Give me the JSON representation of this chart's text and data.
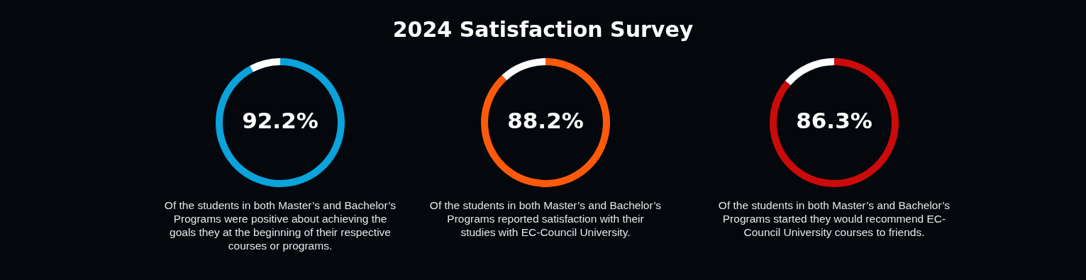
{
  "chart_data": [
    {
      "type": "other",
      "title": "2024 Satisfaction Survey"
    },
    {
      "type": "donut",
      "categories": [
        null,
        null
      ],
      "values": [
        92.2,
        7.8
      ],
      "colors": [
        "#0aa3dc",
        "#ffffff"
      ],
      "value_labels": [
        "92.2%",
        null
      ],
      "annotations": [
        "Of the students in both Master’s and Bachelor’s Programs were positive about achieving the goals they at the beginning of their respective courses or programs."
      ]
    },
    {
      "type": "donut",
      "categories": [
        null,
        null
      ],
      "values": [
        88.2,
        11.8
      ],
      "colors": [
        "#ff5a0a",
        "#ffffff"
      ],
      "value_labels": [
        "88.2%",
        null
      ],
      "annotations": [
        "Of the students in both Master’s and Bachelor’s Programs reported satisfaction with their studies with EC-Council University."
      ]
    },
    {
      "type": "donut",
      "categories": [
        null,
        null
      ],
      "values": [
        86.3,
        13.7
      ],
      "colors": [
        "#cc0a0a",
        "#ffffff"
      ],
      "value_labels": [
        "86.3%",
        null
      ],
      "annotations": [
        "Of the students in both Master’s and Bachelor’s Programs started they would recommend EC-Council University courses to friends."
      ]
    }
  ]
}
